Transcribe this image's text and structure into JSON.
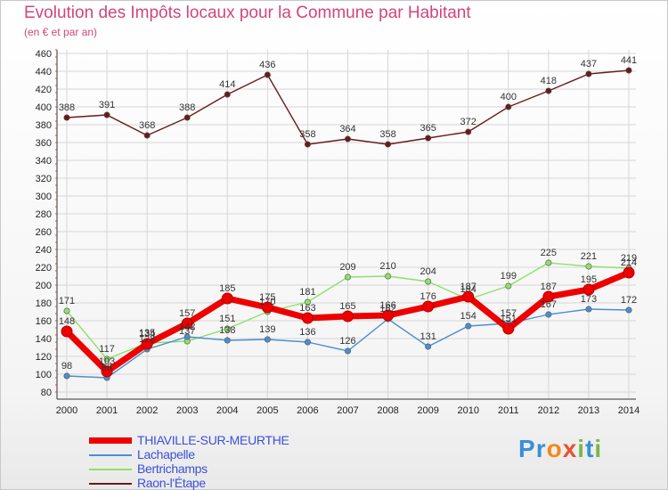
{
  "title": "Evolution des Impôts locaux pour la Commune par Habitant",
  "subtitle": "(en € et par an)",
  "logo": {
    "text": "Proxiti",
    "letters": [
      "P",
      "r",
      "o",
      "x",
      "i",
      "t",
      "i"
    ],
    "colors": [
      "#3a8fd6",
      "#3a8fd6",
      "#f08a1c",
      "#e8532f",
      "#7ab648",
      "#3a8fd6",
      "#7ab648"
    ]
  },
  "chart_data": {
    "type": "line",
    "x": [
      "2000",
      "2001",
      "2002",
      "2003",
      "2004",
      "2005",
      "2006",
      "2007",
      "2008",
      "2009",
      "2010",
      "2011",
      "2012",
      "2013",
      "2014"
    ],
    "ylim": [
      80,
      460
    ],
    "yticks": [
      80,
      100,
      120,
      140,
      160,
      180,
      200,
      220,
      240,
      260,
      280,
      300,
      320,
      340,
      360,
      380,
      400,
      420,
      440,
      460
    ],
    "grid": true,
    "series": [
      {
        "name": "Raon-l'Étape",
        "color": "#6b1a1a",
        "values": [
          388,
          391,
          368,
          388,
          414,
          436,
          358,
          364,
          358,
          365,
          372,
          400,
          418,
          437,
          441
        ]
      },
      {
        "name": "Bertrichamps",
        "color": "#8fe06a",
        "values": [
          171,
          117,
          135,
          137,
          151,
          170,
          181,
          209,
          210,
          204,
          184,
          199,
          225,
          221,
          219
        ]
      },
      {
        "name": "Lachapelle",
        "color": "#4a8fd0",
        "values": [
          98,
          96,
          128,
          142,
          138,
          139,
          136,
          126,
          162,
          131,
          154,
          157,
          167,
          173,
          172
        ]
      },
      {
        "name": "THIAVILLE-SUR-MEURTHE",
        "color": "#ee0000",
        "values": [
          148,
          103,
          134,
          157,
          185,
          175,
          163,
          165,
          166,
          176,
          187,
          151,
          187,
          195,
          214
        ]
      }
    ],
    "legend": [
      "THIAVILLE-SUR-MEURTHE",
      "Lachapelle",
      "Bertrichamps",
      "Raon-l'Étape"
    ]
  }
}
